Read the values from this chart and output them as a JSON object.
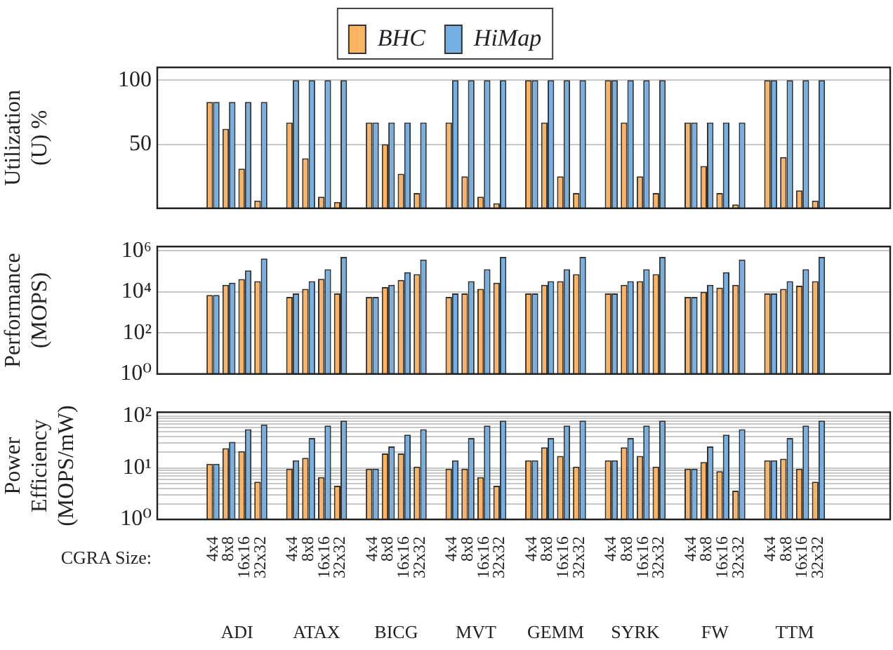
{
  "chart_data": [
    {
      "type": "bar",
      "ylabel": "Utilization\n(U) %",
      "categories": [
        null,
        null,
        null,
        null,
        null,
        null,
        null,
        null,
        null,
        null,
        null,
        null,
        null,
        null,
        null,
        null,
        null,
        null,
        null,
        null,
        null,
        null,
        null,
        null,
        null,
        null,
        null,
        null,
        null,
        null,
        null,
        null,
        null,
        null,
        null,
        null,
        null,
        null,
        null,
        null,
        null,
        null,
        null,
        null,
        null,
        null
      ],
      "series": [
        {
          "name": "BHC",
          "color": "#fdb462",
          "values": [
            null,
            null,
            null,
            83,
            62,
            31,
            6,
            null,
            67,
            39,
            9,
            5,
            null,
            67,
            50,
            27,
            12,
            null,
            67,
            25,
            9,
            4,
            null,
            100,
            67,
            25,
            12,
            null,
            100,
            67,
            25,
            12,
            null,
            67,
            33,
            12,
            3,
            null,
            100,
            40,
            14,
            6,
            null,
            null,
            null,
            null
          ]
        },
        {
          "name": "HiMap",
          "color": "#74b0e3",
          "values": [
            null,
            null,
            null,
            83,
            83,
            83,
            83,
            null,
            100,
            100,
            100,
            100,
            null,
            67,
            67,
            67,
            67,
            null,
            100,
            100,
            100,
            100,
            null,
            100,
            100,
            100,
            100,
            null,
            100,
            100,
            100,
            100,
            null,
            67,
            67,
            67,
            67,
            null,
            100,
            100,
            100,
            100,
            null,
            null,
            null,
            null
          ]
        }
      ],
      "ylim": [
        0,
        110
      ],
      "yticks": [
        50,
        100
      ],
      "grid": "y",
      "legend": "top",
      "tick_labels": "y"
    },
    {
      "type": "bar",
      "ylabel": "Performance\n(MOPS)",
      "categories": [
        null,
        null,
        null,
        null,
        null,
        null,
        null,
        null,
        null,
        null,
        null,
        null,
        null,
        null,
        null,
        null,
        null,
        null,
        null,
        null,
        null,
        null,
        null,
        null,
        null,
        null,
        null,
        null,
        null,
        null,
        null,
        null,
        null,
        null,
        null,
        null,
        null,
        null,
        null,
        null,
        null,
        null,
        null,
        null,
        null,
        null
      ],
      "series": [
        {
          "color": "#fdb462",
          "values": [
            null,
            null,
            null,
            7000,
            22000,
            42000,
            33000,
            null,
            5600,
            14000,
            43000,
            8300,
            null,
            5600,
            17000,
            38000,
            72000,
            null,
            5600,
            8300,
            14000,
            28000,
            null,
            8300,
            22000,
            33000,
            72000,
            null,
            8300,
            22000,
            33000,
            72000,
            null,
            5600,
            10000,
            16000,
            22000,
            null,
            8300,
            14000,
            20000,
            33000,
            null,
            null,
            null,
            null
          ]
        },
        {
          "color": "#74b0e3",
          "values": [
            null,
            null,
            null,
            7000,
            28000,
            110000,
            420000,
            null,
            8300,
            33000,
            126000,
            500000,
            null,
            5600,
            22000,
            91000,
            370000,
            null,
            8300,
            33000,
            126000,
            500000,
            null,
            8300,
            33000,
            126000,
            500000,
            null,
            8300,
            33000,
            126000,
            500000,
            null,
            5600,
            22000,
            91000,
            370000,
            null,
            8300,
            33000,
            126000,
            500000,
            null,
            null,
            null,
            null
          ]
        }
      ],
      "log": "y",
      "ylim": [
        1,
        1600000
      ],
      "yticks": [
        {
          "value": 1,
          "label": "10⁰"
        },
        {
          "value": 100,
          "label": "10²"
        },
        {
          "value": 10000,
          "label": "10⁴"
        },
        {
          "value": 1000000,
          "label": "10⁶"
        }
      ],
      "grid": "y",
      "tick_labels": "y"
    },
    {
      "type": "bar",
      "ylabel": "Power\nEfficiency\n(MOPS/mW)",
      "categories": [
        null,
        null,
        null,
        "4x4",
        "8x8",
        "16x16",
        "32x32",
        null,
        "4x4",
        "8x8",
        "16x16",
        "32x32",
        null,
        "4x4",
        "8x8",
        "16x16",
        "32x32",
        null,
        "4x4",
        "8x8",
        "16x16",
        "32x32",
        null,
        "4x4",
        "8x8",
        "16x16",
        "32x32",
        null,
        "4x4",
        "8x8",
        "16x16",
        "32x32",
        null,
        "4x4",
        "8x8",
        "16x16",
        "32x32",
        null,
        "4x4",
        "8x8",
        "16x16",
        "32x32",
        null,
        null,
        null,
        null
      ],
      "series": [
        {
          "color": "#fdb462",
          "values": [
            null,
            null,
            null,
            12,
            24,
            21,
            5.4,
            null,
            9.6,
            15.6,
            6.6,
            4.5,
            null,
            9.6,
            19,
            19,
            10.6,
            null,
            9.6,
            9.6,
            6.6,
            4.5,
            null,
            14,
            25,
            17,
            10.6,
            null,
            14,
            25,
            17,
            10.6,
            null,
            9.6,
            13,
            8.6,
            3.6,
            null,
            14,
            15,
            9.6,
            5.4,
            null,
            null,
            null,
            null
          ]
        },
        {
          "color": "#74b0e3",
          "values": [
            null,
            null,
            null,
            12,
            32,
            56,
            69,
            null,
            14,
            38,
            66,
            82,
            null,
            9.6,
            26,
            44,
            56,
            null,
            14,
            38,
            66,
            82,
            null,
            14,
            38,
            66,
            82,
            null,
            14,
            38,
            66,
            82,
            null,
            9.6,
            26,
            44,
            56,
            null,
            14,
            38,
            66,
            82,
            null,
            null,
            null,
            null
          ]
        }
      ],
      "log": "y",
      "ylim": [
        1,
        120
      ],
      "yticks": [
        {
          "value": 1,
          "label": "10⁰"
        },
        {
          "value": 2,
          "label": null
        },
        {
          "value": 3,
          "label": null
        },
        {
          "value": 4,
          "label": null
        },
        {
          "value": 5,
          "label": null
        },
        {
          "value": 6,
          "label": null
        },
        {
          "value": 7,
          "label": null
        },
        {
          "value": 8,
          "label": null
        },
        {
          "value": 9,
          "label": null
        },
        {
          "value": 10,
          "label": "10¹"
        },
        {
          "value": 20,
          "label": null
        },
        {
          "value": 30,
          "label": null
        },
        {
          "value": 40,
          "label": null
        },
        {
          "value": 50,
          "label": null
        },
        {
          "value": 60,
          "label": null
        },
        {
          "value": 70,
          "label": null
        },
        {
          "value": 80,
          "label": null
        },
        {
          "value": 90,
          "label": null
        },
        {
          "value": 100,
          "label": "10²"
        }
      ],
      "grid": "y",
      "annotations": [
        "CGRA Size:",
        "ADI",
        "ATAX",
        "BICG",
        "MVT",
        "GEMM",
        "SYRK",
        "FW",
        "TTM"
      ]
    }
  ]
}
